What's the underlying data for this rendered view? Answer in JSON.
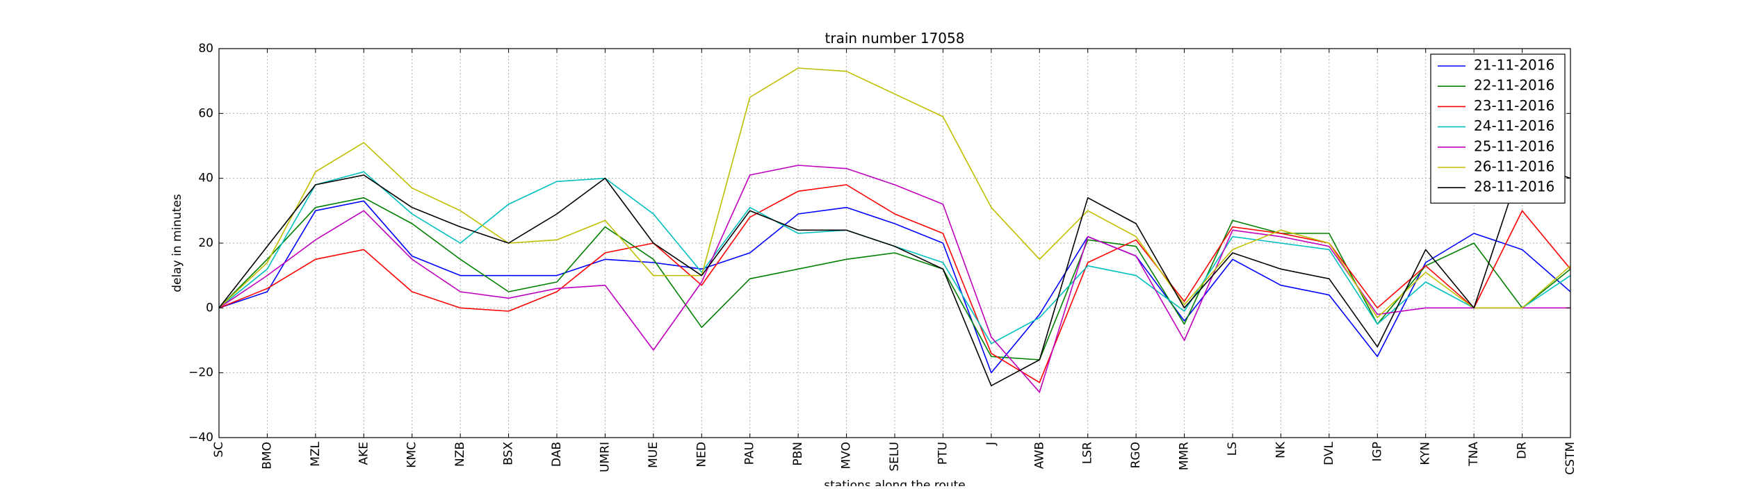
{
  "chart_data": {
    "type": "line",
    "title": "train number 17058",
    "xlabel": "stations along the route",
    "ylabel": "delay in minutes",
    "ylim": [
      -40,
      80
    ],
    "yticks": [
      -40,
      -20,
      0,
      20,
      40,
      60,
      80
    ],
    "grid": true,
    "legend_position": "top-right",
    "categories": [
      "SC",
      "BMO",
      "MZL",
      "AKE",
      "KMC",
      "NZB",
      "BSX",
      "DAB",
      "UMRI",
      "MUE",
      "NED",
      "PAU",
      "PBN",
      "MVO",
      "SELU",
      "PTU",
      "J",
      "AWB",
      "LSR",
      "RGO",
      "MMR",
      "LS",
      "NK",
      "DVL",
      "IGP",
      "KYN",
      "TNA",
      "DR",
      "CSTM"
    ],
    "series": [
      {
        "name": "21-11-2016",
        "color": "#0000ff",
        "values": [
          0,
          5,
          30,
          33,
          16,
          10,
          10,
          10,
          15,
          14,
          12,
          17,
          29,
          31,
          26,
          20,
          -20,
          -2,
          22,
          16,
          -4,
          15,
          7,
          4,
          -15,
          14,
          23,
          18,
          5
        ]
      },
      {
        "name": "22-11-2016",
        "color": "#008000",
        "values": [
          0,
          15,
          31,
          34,
          26,
          15,
          5,
          8,
          25,
          15,
          -6,
          9,
          12,
          15,
          17,
          12,
          -15,
          -16,
          21,
          19,
          -5,
          27,
          23,
          23,
          -5,
          13,
          20,
          0,
          12
        ]
      },
      {
        "name": "23-11-2016",
        "color": "#ff0000",
        "values": [
          0,
          6,
          15,
          18,
          5,
          0,
          -1,
          5,
          17,
          20,
          7,
          28,
          36,
          38,
          29,
          23,
          -14,
          -23,
          14,
          21,
          2,
          25,
          23,
          20,
          0,
          13,
          0,
          30,
          12
        ]
      },
      {
        "name": "24-11-2016",
        "color": "#00bfbf",
        "values": [
          0,
          12,
          38,
          42,
          29,
          20,
          32,
          39,
          40,
          29,
          11,
          31,
          23,
          24,
          19,
          14,
          -11,
          -3,
          13,
          10,
          -1,
          22,
          20,
          18,
          -5,
          8,
          0,
          0,
          10
        ]
      },
      {
        "name": "25-11-2016",
        "color": "#bf00bf",
        "values": [
          0,
          10,
          21,
          30,
          15,
          5,
          3,
          6,
          7,
          -13,
          8,
          41,
          44,
          43,
          38,
          32,
          -9,
          -26,
          22,
          16,
          -10,
          24,
          22,
          19,
          -2,
          0,
          0,
          0,
          0
        ]
      },
      {
        "name": "26-11-2016",
        "color": "#bfbf00",
        "values": [
          0,
          14,
          42,
          51,
          37,
          30,
          20,
          21,
          27,
          10,
          10,
          65,
          74,
          73,
          66,
          59,
          31,
          15,
          30,
          22,
          1,
          18,
          24,
          20,
          -3,
          11,
          0,
          0,
          13
        ]
      },
      {
        "name": "28-11-2016",
        "color": "#000000",
        "values": [
          0,
          19,
          38,
          41,
          31,
          25,
          20,
          29,
          40,
          20,
          10,
          30,
          24,
          24,
          19,
          12,
          -24,
          -16,
          34,
          26,
          0,
          17,
          12,
          9,
          -12,
          18,
          0,
          45,
          40
        ]
      }
    ]
  }
}
